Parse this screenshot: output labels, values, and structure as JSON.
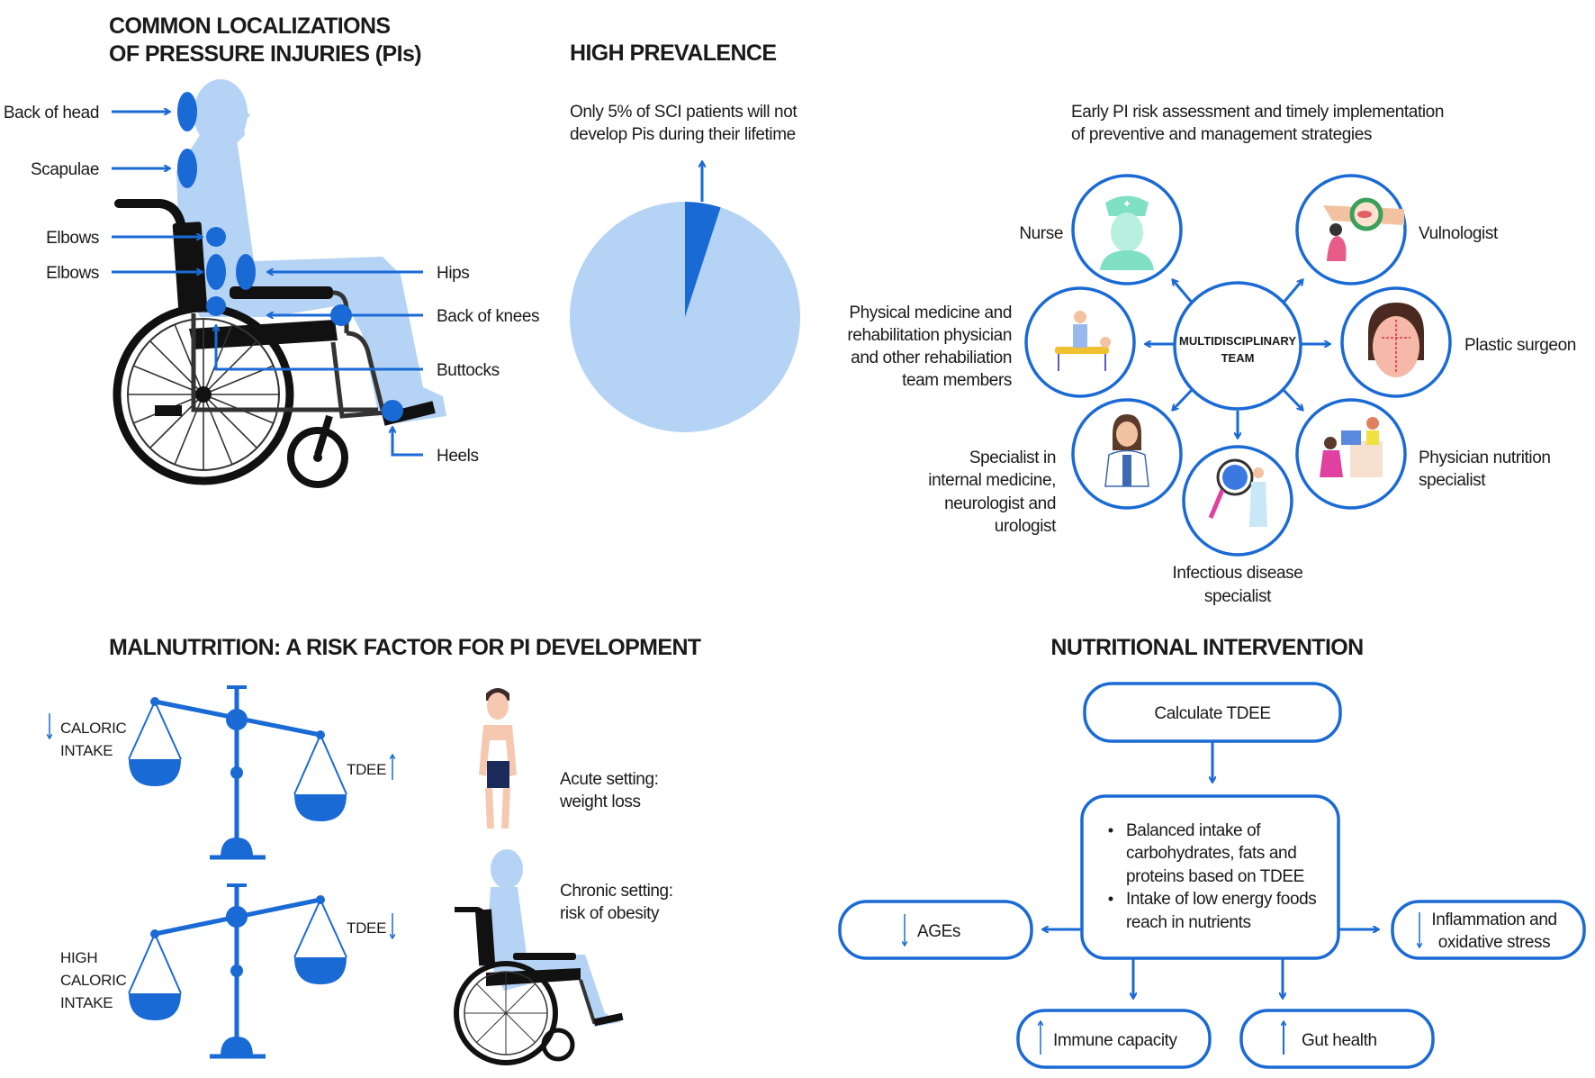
{
  "colors": {
    "accent": "#1a6ad6",
    "light_blue": "#b5d3f5",
    "wheelchair": "#111111"
  },
  "localizations": {
    "title_lines": [
      "COMMON LOCALIZATIONS",
      "OF PRESSURE INJURIES (PIs)"
    ],
    "labels": {
      "back_of_head": "Back of head",
      "scapulae": "Scapulae",
      "elbows_1": "Elbows",
      "elbows_2": "Elbows",
      "hips": "Hips",
      "back_of_knees": "Back of knees",
      "buttocks": "Buttocks",
      "heels": "Heels"
    }
  },
  "prevalence": {
    "title": "HIGH PREVALENCE",
    "text_lines": [
      "Only 5% of SCI patients will not",
      "develop Pis during their lifetime"
    ],
    "pie": {
      "highlighted_percent": 5,
      "rest_percent": 95
    }
  },
  "team": {
    "intro_lines": [
      "Early PI risk assessment and timely implementation",
      "of preventive and management strategies"
    ],
    "center_lines": [
      "MULTIDISCIPLINARY",
      "TEAM"
    ],
    "members": {
      "nurse": [
        "Nurse"
      ],
      "vulnologist": [
        "Vulnologist"
      ],
      "rehab": [
        "Physical medicine and",
        "rehabilitation physician",
        "and other rehabiliation",
        "team members"
      ],
      "plastic": [
        "Plastic surgeon"
      ],
      "internal": [
        "Specialist in",
        "internal medicine,",
        "neurologist and",
        "urologist"
      ],
      "nutrition": [
        "Physician nutrition",
        "specialist"
      ],
      "infectious": [
        "Infectious disease",
        "specialist"
      ]
    }
  },
  "malnutrition": {
    "title": "MALNUTRITION: A RISK FACTOR FOR PI DEVELOPMENT",
    "scale1": {
      "left_lines": [
        "CALORIC",
        "INTAKE"
      ],
      "left_arrow": "down",
      "right": "TDEE",
      "right_arrow": "up"
    },
    "scale2": {
      "left_lines": [
        "HIGH",
        "CALORIC",
        "INTAKE"
      ],
      "right": "TDEE",
      "right_arrow": "down"
    },
    "acute_lines": [
      "Acute setting:",
      "weight loss"
    ],
    "chronic_lines": [
      "Chronic setting:",
      "risk of obesity"
    ]
  },
  "intervention": {
    "title": "NUTRITIONAL INTERVENTION",
    "calculate": "Calculate TDEE",
    "bullets": [
      [
        "Balanced intake of",
        "carbohydrates, fats and",
        "proteins based on TDEE"
      ],
      [
        "Intake of low energy foods",
        "reach in nutrients"
      ]
    ],
    "ages": {
      "label": "AGEs",
      "arrow": "down"
    },
    "inflammation": {
      "lines": [
        "Inflammation and",
        "oxidative stress"
      ],
      "arrow": "down"
    },
    "immune": {
      "label": "Immune capacity",
      "arrow": "up"
    },
    "gut": {
      "label": "Gut health",
      "arrow": "up"
    }
  }
}
